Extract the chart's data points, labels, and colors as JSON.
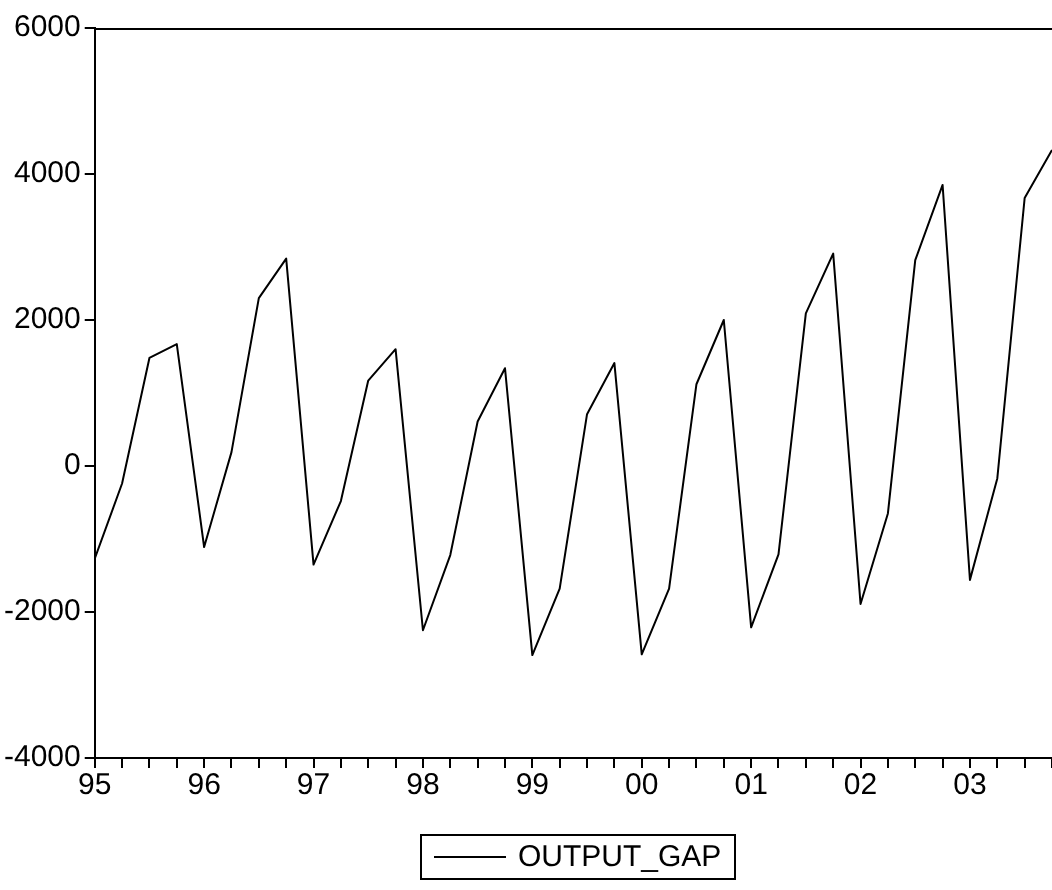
{
  "chart_data": {
    "type": "line",
    "x": [
      1995,
      1995.25,
      1995.5,
      1995.75,
      1996,
      1996.25,
      1996.5,
      1996.75,
      1997,
      1997.25,
      1997.5,
      1997.75,
      1998,
      1998.25,
      1998.5,
      1998.75,
      1999,
      1999.25,
      1999.5,
      1999.75,
      2000,
      2000.25,
      2000.5,
      2000.75,
      2001,
      2001.25,
      2001.5,
      2001.75,
      2002,
      2002.25,
      2002.5,
      2002.75,
      2003,
      2003.25,
      2003.5,
      2003.75
    ],
    "series": [
      {
        "name": "OUTPUT_GAP",
        "color": "#000000",
        "values": [
          -1270,
          -240,
          1480,
          1670,
          -1110,
          190,
          2300,
          2840,
          -1350,
          -480,
          1170,
          1600,
          -2250,
          -1220,
          610,
          1340,
          -2590,
          -1680,
          710,
          1410,
          -2580,
          -1680,
          1120,
          2000,
          -2210,
          -1210,
          2090,
          2910,
          -1890,
          -650,
          2820,
          3850,
          -1560,
          -170,
          3670,
          4330
        ]
      }
    ],
    "xlim": [
      1995,
      2003.75
    ],
    "xticks": [
      {
        "value": 1995,
        "label": "95"
      },
      {
        "value": 1995.25,
        "label": null
      },
      {
        "value": 1995.5,
        "label": null
      },
      {
        "value": 1995.75,
        "label": null
      },
      {
        "value": 1996,
        "label": "96"
      },
      {
        "value": 1996.25,
        "label": null
      },
      {
        "value": 1996.5,
        "label": null
      },
      {
        "value": 1996.75,
        "label": null
      },
      {
        "value": 1997,
        "label": "97"
      },
      {
        "value": 1997.25,
        "label": null
      },
      {
        "value": 1997.5,
        "label": null
      },
      {
        "value": 1997.75,
        "label": null
      },
      {
        "value": 1998,
        "label": "98"
      },
      {
        "value": 1998.25,
        "label": null
      },
      {
        "value": 1998.5,
        "label": null
      },
      {
        "value": 1998.75,
        "label": null
      },
      {
        "value": 1999,
        "label": "99"
      },
      {
        "value": 1999.25,
        "label": null
      },
      {
        "value": 1999.5,
        "label": null
      },
      {
        "value": 1999.75,
        "label": null
      },
      {
        "value": 2000,
        "label": "00"
      },
      {
        "value": 2000.25,
        "label": null
      },
      {
        "value": 2000.5,
        "label": null
      },
      {
        "value": 2000.75,
        "label": null
      },
      {
        "value": 2001,
        "label": "01"
      },
      {
        "value": 2001.25,
        "label": null
      },
      {
        "value": 2001.5,
        "label": null
      },
      {
        "value": 2001.75,
        "label": null
      },
      {
        "value": 2002,
        "label": "02"
      },
      {
        "value": 2002.25,
        "label": null
      },
      {
        "value": 2002.5,
        "label": null
      },
      {
        "value": 2002.75,
        "label": null
      },
      {
        "value": 2003,
        "label": "03"
      },
      {
        "value": 2003.25,
        "label": null
      },
      {
        "value": 2003.5,
        "label": null
      },
      {
        "value": 2003.75,
        "label": null
      }
    ],
    "ylim": [
      -4000,
      6000
    ],
    "yticks": [
      -4000,
      -2000,
      0,
      2000,
      4000,
      6000
    ],
    "grid": false,
    "legend": "bottom",
    "marker": "none",
    "line_style": "solid"
  }
}
